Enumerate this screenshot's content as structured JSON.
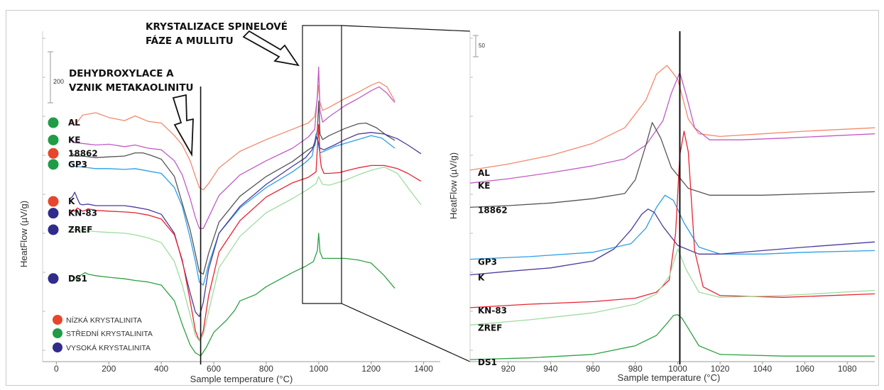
{
  "colors": {
    "AL": "#f4896c",
    "KE": "#c25bc7",
    "18862": "#555555",
    "GP3": "#2a9fe6",
    "K": "#4a3a9c",
    "KN-83": "#e8232f",
    "ZREF": "#9fdca0",
    "DS1": "#2ea143",
    "low": "#e8462c",
    "mid": "#1f9c45",
    "high": "#2f2c8c"
  },
  "legend": {
    "low": "NÍZKÁ KRYSTALINITA",
    "mid": "STŘEDNÍ KRYSTALINITA",
    "high": "VYSOKÁ KRYSTALINITA"
  },
  "annotations": {
    "spinel_line1": "KRYSTALIZACE SPINELOVÉ",
    "spinel_line2": "FÁZE A MULLITU",
    "dehyd_line1": "DEHYDROXYLACE A",
    "dehyd_line2": "VZNIK METAKAOLINITU"
  },
  "chart_data": [
    {
      "type": "line",
      "xlabel": "Sample temperature (°C)",
      "ylabel": "HeatFlow (µV/g)",
      "xlim": [
        -20,
        1420
      ],
      "xticks": [
        0,
        200,
        400,
        600,
        800,
        1000,
        1200,
        1400
      ],
      "scale_bar": "200",
      "vline_x": 550,
      "series": [
        {
          "name": "AL",
          "marker": "mid",
          "x": [
            50,
            70,
            100,
            150,
            200,
            260,
            300,
            350,
            400,
            450,
            480,
            510,
            530,
            545,
            560,
            580,
            620,
            700,
            800,
            900,
            960,
            985,
            995,
            1000,
            1005,
            1015,
            1040,
            1100,
            1150,
            1200,
            1230,
            1260,
            1290
          ],
          "y": [
            118,
            111,
            124,
            127,
            121,
            117,
            123,
            116,
            114,
            98,
            86,
            66,
            46,
            32,
            29,
            37,
            57,
            78,
            93,
            106,
            114,
            122,
            146,
            162,
            140,
            130,
            134,
            145,
            153,
            162,
            166,
            160,
            142
          ]
        },
        {
          "name": "KE",
          "marker": "mid",
          "x": [
            50,
            70,
            100,
            150,
            200,
            260,
            300,
            350,
            400,
            450,
            480,
            510,
            530,
            545,
            560,
            580,
            620,
            700,
            800,
            900,
            960,
            985,
            995,
            1000,
            1005,
            1015,
            1040,
            1100,
            1150,
            1200,
            1230,
            1260,
            1290
          ],
          "y": [
            96,
            89,
            88,
            86,
            87,
            84,
            86,
            82,
            80,
            66,
            48,
            18,
            -6,
            -20,
            -20,
            -6,
            22,
            48,
            66,
            82,
            96,
            106,
            150,
            185,
            130,
            115,
            122,
            136,
            145,
            155,
            160,
            152,
            140
          ]
        },
        {
          "name": "18862",
          "marker": "low",
          "x": [
            50,
            70,
            100,
            150,
            200,
            260,
            300,
            330,
            360,
            400,
            450,
            480,
            510,
            530,
            545,
            560,
            580,
            620,
            700,
            800,
            900,
            960,
            985,
            995,
            1000,
            1005,
            1015,
            1040,
            1100,
            1150,
            1180,
            1220,
            1260,
            1290
          ],
          "y": [
            79,
            72,
            72,
            70,
            71,
            72,
            76,
            76,
            73,
            68,
            46,
            12,
            -22,
            -52,
            -75,
            -78,
            -52,
            -12,
            21,
            46,
            65,
            80,
            85,
            105,
            142,
            100,
            93,
            98,
            107,
            113,
            114,
            108,
            98,
            92
          ]
        },
        {
          "name": "GP3",
          "marker": "mid",
          "x": [
            50,
            70,
            100,
            150,
            200,
            260,
            300,
            350,
            400,
            450,
            480,
            510,
            530,
            545,
            560,
            580,
            620,
            700,
            800,
            900,
            950,
            975,
            985,
            990,
            995,
            1005,
            1020,
            1060,
            1100,
            1150,
            1200,
            1240,
            1290
          ],
          "y": [
            65,
            59,
            58,
            56,
            56,
            55,
            56,
            53,
            50,
            32,
            8,
            -32,
            -62,
            -88,
            -92,
            -66,
            -26,
            6,
            32,
            52,
            64,
            72,
            89,
            100,
            92,
            76,
            78,
            84,
            88,
            93,
            98,
            95,
            82
          ]
        },
        {
          "name": "K",
          "marker": "low",
          "x": [
            50,
            60,
            70,
            80,
            90,
            100,
            120,
            150,
            200,
            260,
            300,
            350,
            400,
            450,
            480,
            510,
            530,
            545,
            560,
            580,
            620,
            700,
            800,
            900,
            950,
            975,
            985,
            990,
            995,
            1005,
            1020,
            1060,
            1100,
            1150,
            1200,
            1250,
            1300,
            1340,
            1390
          ],
          "y": [
            18,
            20,
            26,
            18,
            11,
            10,
            11,
            9,
            9,
            9,
            7,
            4,
            -2,
            -26,
            -62,
            -102,
            -126,
            -132,
            -114,
            -72,
            -26,
            8,
            36,
            59,
            70,
            80,
            90,
            97,
            94,
            82,
            80,
            86,
            93,
            100,
            102,
            100,
            94,
            86,
            75
          ]
        },
        {
          "name": "KN-83",
          "marker": "high",
          "x": [
            50,
            60,
            70,
            80,
            90,
            100,
            110,
            120,
            150,
            200,
            260,
            300,
            350,
            400,
            450,
            480,
            510,
            530,
            545,
            560,
            580,
            620,
            700,
            800,
            900,
            960,
            990,
            1000,
            1005,
            1010,
            1020,
            1040,
            1080,
            1100,
            1150,
            1200,
            1250,
            1300,
            1340,
            1390
          ],
          "y": [
            3,
            3,
            2,
            6,
            4,
            2,
            3,
            5,
            3,
            2,
            1,
            0,
            -3,
            -8,
            -28,
            -60,
            -112,
            -150,
            -163,
            -150,
            -106,
            -50,
            -10,
            20,
            38,
            45,
            52,
            112,
            72,
            58,
            50,
            50,
            51,
            53,
            57,
            60,
            60,
            56,
            50,
            40
          ]
        },
        {
          "name": "ZREF",
          "marker": "high",
          "x": [
            50,
            70,
            100,
            150,
            200,
            260,
            300,
            350,
            400,
            450,
            480,
            510,
            530,
            545,
            560,
            580,
            620,
            700,
            800,
            900,
            960,
            990,
            1000,
            1005,
            1015,
            1040,
            1100,
            1150,
            1200,
            1250,
            1300,
            1340,
            1390
          ],
          "y": [
            -18,
            -22,
            -22,
            -24,
            -25,
            -26,
            -28,
            -32,
            -38,
            -62,
            -92,
            -130,
            -156,
            -163,
            -155,
            -126,
            -70,
            -30,
            0,
            18,
            30,
            37,
            46,
            42,
            36,
            35,
            41,
            48,
            54,
            58,
            50,
            32,
            10
          ]
        },
        {
          "name": "DS1",
          "marker": "high",
          "x": [
            50,
            70,
            80,
            90,
            100,
            110,
            120,
            150,
            200,
            260,
            300,
            350,
            400,
            450,
            480,
            510,
            530,
            550,
            570,
            600,
            650,
            680,
            700,
            760,
            800,
            900,
            950,
            980,
            995,
            1000,
            1005,
            1015,
            1060,
            1100,
            1150,
            1200,
            1250,
            1290
          ],
          "y": [
            -80,
            -82,
            -86,
            -80,
            -78,
            -76,
            -78,
            -80,
            -82,
            -84,
            -86,
            -88,
            -92,
            -112,
            -142,
            -168,
            -178,
            -182,
            -172,
            -152,
            -136,
            -124,
            -112,
            -104,
            -94,
            -76,
            -68,
            -62,
            -48,
            -26,
            -50,
            -58,
            -58,
            -58,
            -60,
            -64,
            -80,
            -96
          ]
        }
      ]
    },
    {
      "type": "line",
      "xlabel": "Sample temperature (°C)",
      "ylabel": "HeatFlow (µV/g)",
      "xlim": [
        902,
        1093
      ],
      "xticks": [
        920,
        940,
        960,
        980,
        1000,
        1020,
        1040,
        1060,
        1080
      ],
      "scale_bar": "50",
      "vline_x": 1001,
      "series": [
        {
          "name": "AL",
          "x": [
            902,
            920,
            940,
            960,
            975,
            985,
            990,
            995,
            1000,
            1005,
            1010,
            1020,
            1040,
            1060,
            1093
          ],
          "y": [
            23,
            30,
            40,
            54,
            72,
            104,
            134,
            144,
            128,
            82,
            65,
            62,
            65,
            68,
            72
          ]
        },
        {
          "name": "KE",
          "x": [
            902,
            920,
            940,
            960,
            975,
            985,
            993,
            997,
            1001,
            1004,
            1008,
            1015,
            1030,
            1050,
            1093
          ],
          "y": [
            8,
            13,
            20,
            28,
            36,
            52,
            80,
            112,
            136,
            110,
            72,
            58,
            58,
            60,
            65
          ]
        },
        {
          "name": "18862",
          "x": [
            902,
            920,
            940,
            960,
            975,
            980,
            985,
            988,
            992,
            997,
            1005,
            1015,
            1040,
            1093
          ],
          "y": [
            -20,
            -18,
            -15,
            -10,
            -4,
            12,
            52,
            78,
            60,
            26,
            2,
            -6,
            -6,
            -2
          ]
        },
        {
          "name": "GP3",
          "x": [
            902,
            930,
            960,
            978,
            985,
            990,
            994,
            998,
            1003,
            1010,
            1020,
            1040,
            1060,
            1093
          ],
          "y": [
            -80,
            -77,
            -72,
            -62,
            -44,
            -20,
            -6,
            -12,
            -38,
            -66,
            -74,
            -74,
            -72,
            -70
          ]
        },
        {
          "name": "K",
          "x": [
            902,
            920,
            940,
            960,
            970,
            978,
            983,
            986,
            989,
            993,
            1000,
            1010,
            1020,
            1040,
            1060,
            1093
          ],
          "y": [
            -98,
            -94,
            -90,
            -82,
            -68,
            -46,
            -28,
            -22,
            -26,
            -42,
            -64,
            -74,
            -74,
            -70,
            -66,
            -60
          ]
        },
        {
          "name": "KN-83",
          "x": [
            902,
            930,
            960,
            980,
            990,
            996,
            999,
            1001,
            1003,
            1005,
            1008,
            1012,
            1020,
            1050,
            1093
          ],
          "y": [
            -136,
            -132,
            -129,
            -125,
            -118,
            -104,
            -50,
            40,
            68,
            44,
            -70,
            -112,
            -122,
            -124,
            -120
          ]
        },
        {
          "name": "ZREF",
          "x": [
            902,
            930,
            960,
            980,
            990,
            996,
            1000,
            1004,
            1010,
            1020,
            1050,
            1093
          ],
          "y": [
            -156,
            -150,
            -142,
            -132,
            -120,
            -100,
            -68,
            -92,
            -118,
            -124,
            -122,
            -116
          ]
        },
        {
          "name": "DS1",
          "x": [
            902,
            930,
            960,
            980,
            990,
            995,
            998,
            1000,
            1002,
            1005,
            1010,
            1020,
            1050,
            1093
          ],
          "y": [
            -196,
            -194,
            -190,
            -180,
            -168,
            -154,
            -145,
            -144,
            -148,
            -160,
            -180,
            -190,
            -192,
            -192
          ]
        }
      ]
    }
  ]
}
